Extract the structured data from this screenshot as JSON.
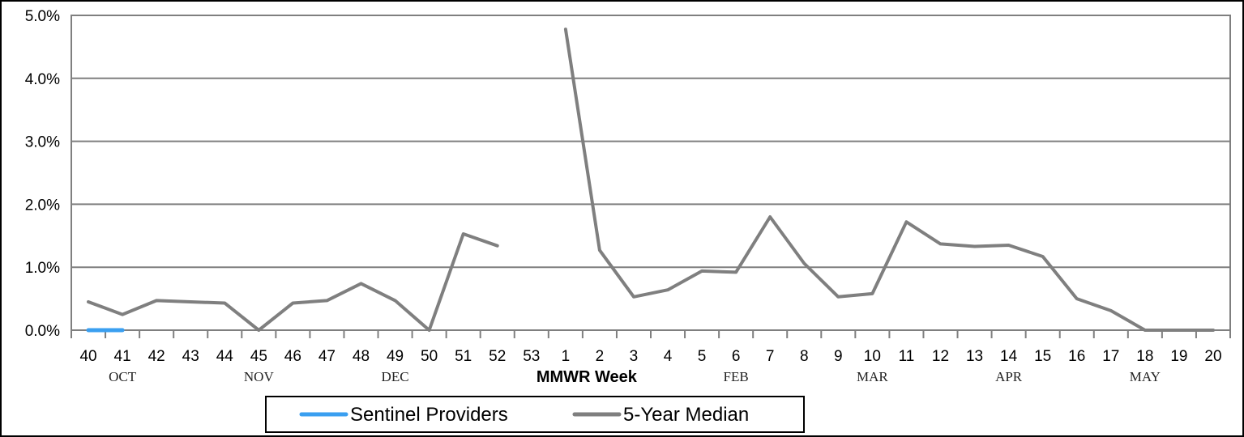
{
  "chart_data": {
    "type": "line",
    "xlabel": "MMWR Week",
    "ylabel": "",
    "ylim": [
      0,
      5
    ],
    "y_ticks": [
      "0.0%",
      "1.0%",
      "2.0%",
      "3.0%",
      "4.0%",
      "5.0%"
    ],
    "y_tick_values": [
      0,
      1,
      2,
      3,
      4,
      5
    ],
    "y_unit": "%",
    "grid": "horizontal",
    "categories": [
      "40",
      "41",
      "42",
      "43",
      "44",
      "45",
      "46",
      "47",
      "48",
      "49",
      "50",
      "51",
      "52",
      "53",
      "1",
      "2",
      "3",
      "4",
      "5",
      "6",
      "7",
      "8",
      "9",
      "10",
      "11",
      "12",
      "13",
      "14",
      "15",
      "16",
      "17",
      "18",
      "19",
      "20"
    ],
    "month_labels": [
      {
        "label": "OCT",
        "week": "41"
      },
      {
        "label": "NOV",
        "week": "45"
      },
      {
        "label": "DEC",
        "week": "49"
      },
      {
        "label": "FEB",
        "week": "6"
      },
      {
        "label": "MAR",
        "week": "10"
      },
      {
        "label": "APR",
        "week": "14"
      },
      {
        "label": "MAY",
        "week": "18"
      }
    ],
    "series": [
      {
        "name": "Sentinel Providers",
        "color": "#3a9ff0",
        "values": [
          0.0,
          0.0,
          null,
          null,
          null,
          null,
          null,
          null,
          null,
          null,
          null,
          null,
          null,
          null,
          null,
          null,
          null,
          null,
          null,
          null,
          null,
          null,
          null,
          null,
          null,
          null,
          null,
          null,
          null,
          null,
          null,
          null,
          null,
          null
        ]
      },
      {
        "name": "5-Year Median",
        "color": "#7f7f7f",
        "values": [
          0.45,
          0.25,
          0.47,
          0.45,
          0.43,
          0.0,
          0.43,
          0.47,
          0.74,
          0.47,
          0.0,
          1.53,
          1.34,
          null,
          4.78,
          1.27,
          0.53,
          0.64,
          0.94,
          0.92,
          1.8,
          1.06,
          0.53,
          0.58,
          1.72,
          1.37,
          1.33,
          1.35,
          1.17,
          0.5,
          0.31,
          0.0,
          0.0,
          0.0
        ]
      }
    ],
    "legend_position": "bottom-center"
  }
}
